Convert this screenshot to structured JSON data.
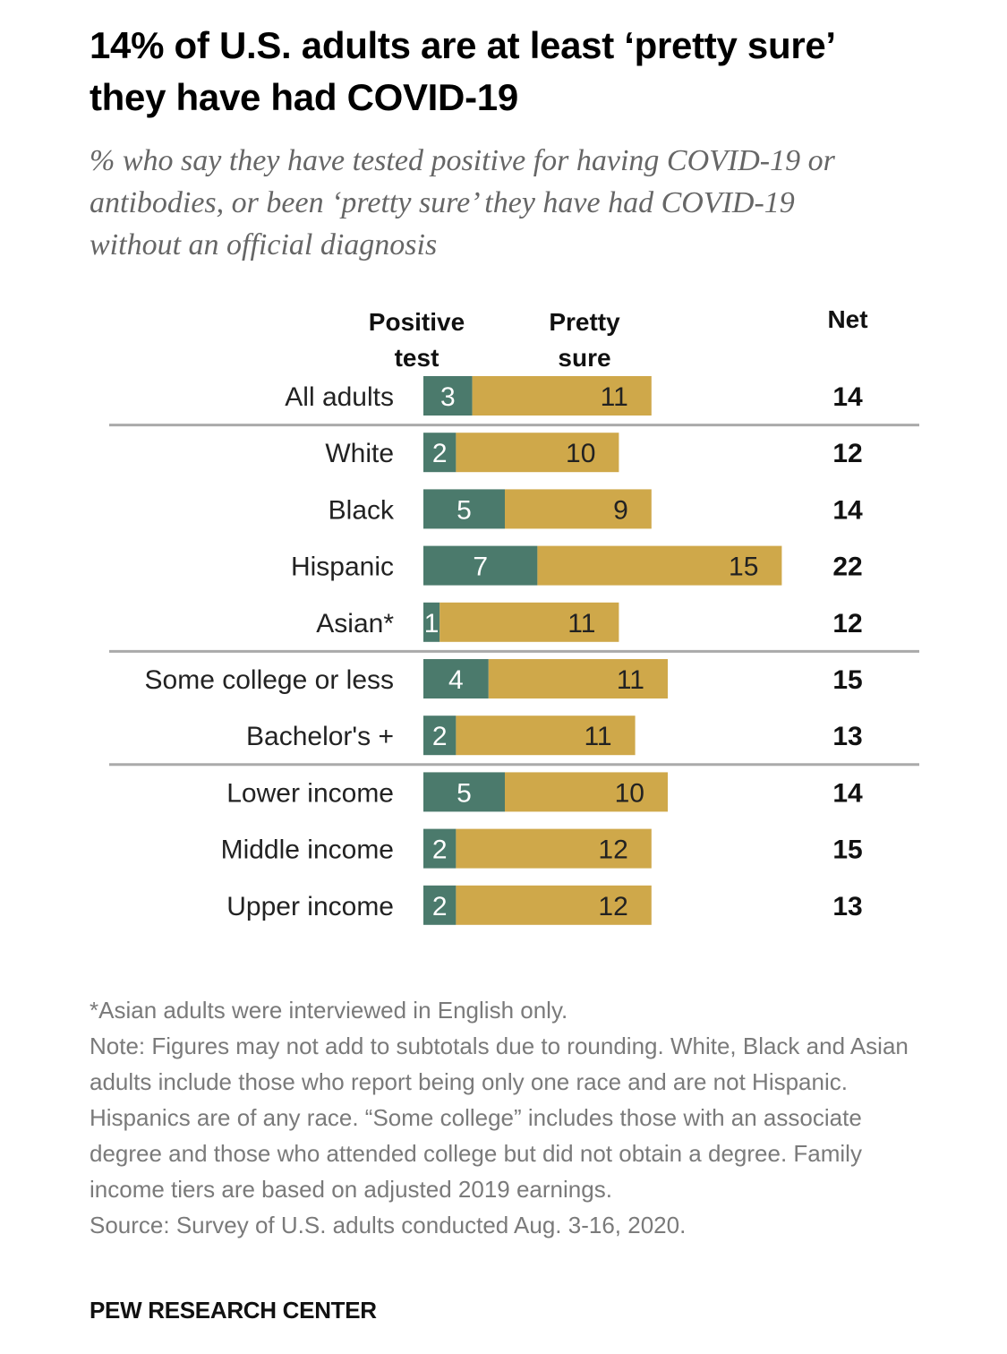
{
  "title": "14% of U.S. adults are at least ‘pretty sure’ they have had COVID-19",
  "subtitle": "% who say they have tested positive for having COVID-19 or antibodies, or been ‘pretty sure’ they have had COVID-19 without an official diagnosis",
  "columns": {
    "positive": "Positive test",
    "pretty_sure": "Pretty sure",
    "net": "Net"
  },
  "colors": {
    "positive": "#4B7A6C",
    "pretty_sure": "#CFA84A",
    "divider": "#aaaaaa"
  },
  "chart_data": {
    "type": "bar",
    "orientation": "horizontal",
    "stacked": true,
    "title": "14% of U.S. adults are at least ‘pretty sure’ they have had COVID-19",
    "subtitle": "% who say they have tested positive for having COVID-19 or antibodies, or been ‘pretty sure’ they have had COVID-19 without an official diagnosis",
    "categories": [
      "All adults",
      "White",
      "Black",
      "Hispanic",
      "Asian*",
      "Some college or less",
      "Bachelor's +",
      "Lower income",
      "Middle income",
      "Upper income"
    ],
    "series": [
      {
        "name": "Positive test",
        "values": [
          3,
          2,
          5,
          7,
          1,
          4,
          2,
          5,
          2,
          2
        ]
      },
      {
        "name": "Pretty sure",
        "values": [
          11,
          10,
          9,
          15,
          11,
          11,
          11,
          10,
          12,
          12
        ]
      }
    ],
    "net": {
      "name": "Net",
      "values": [
        14,
        12,
        14,
        22,
        12,
        15,
        13,
        14,
        15,
        13
      ]
    },
    "groups_dividers_after": [
      "All adults",
      "Asian*",
      "Bachelor's +"
    ],
    "xlim": [
      0,
      22
    ],
    "xlabel": "",
    "ylabel": "",
    "grid": false,
    "legend": "column headers top"
  },
  "notes": {
    "footnote": "*Asian adults were interviewed in English only.",
    "note": "Note: Figures may not add to subtotals due to rounding. White, Black and Asian adults include those who report being only one race and are not Hispanic. Hispanics are of any race. “Some college” includes those with an associate degree and those who attended college but did not obtain a degree. Family income tiers are based on adjusted 2019 earnings.",
    "source": "Source: Survey of U.S. adults conducted Aug. 3-16, 2020."
  },
  "brand": "PEW RESEARCH CENTER"
}
